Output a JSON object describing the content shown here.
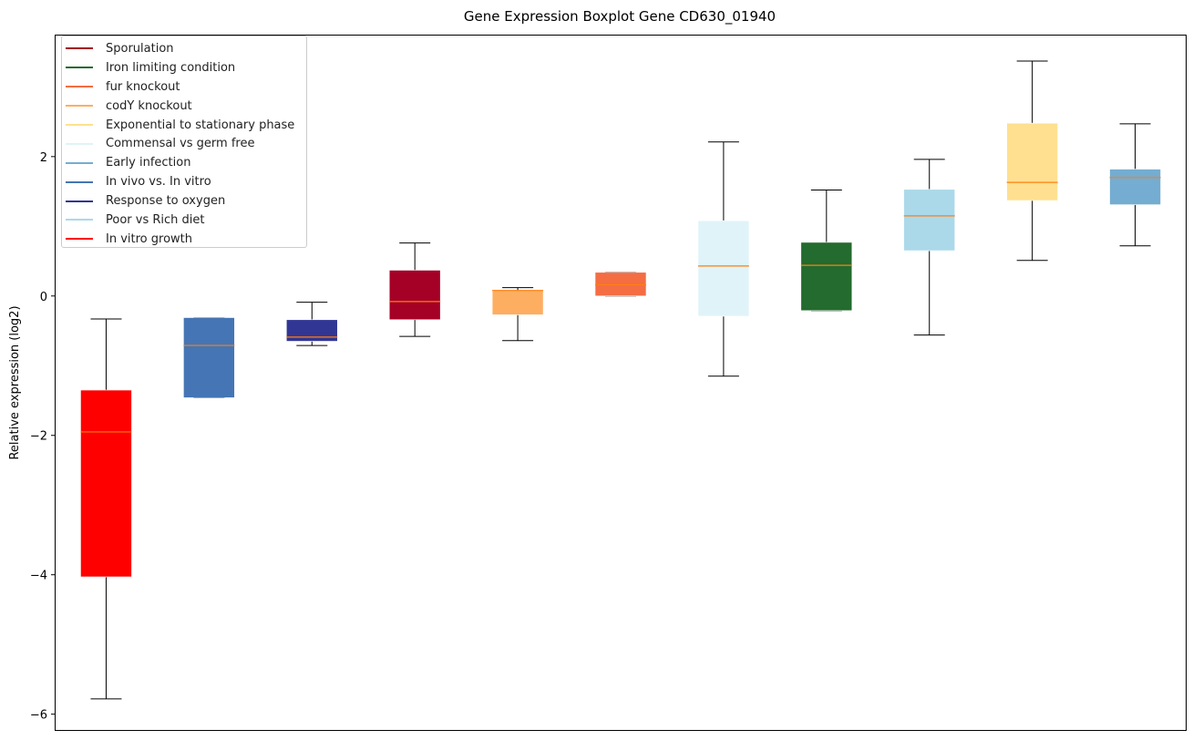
{
  "chart_data": {
    "type": "boxplot",
    "title": "Gene Expression Boxplot Gene CD630_01940",
    "xlabel": "",
    "ylabel": "Relative expression (log2)",
    "ylim": [
      -6.24,
      3.75
    ],
    "yticks": [
      -6,
      -4,
      -2,
      0,
      2
    ],
    "ytick_labels": [
      "−6",
      "−4",
      "−2",
      "0",
      "2"
    ],
    "grid": false,
    "legend_placement": "top-left",
    "median_color": "#ff7f0e",
    "legend": [
      {
        "label": "Sporulation",
        "color": "#a50026"
      },
      {
        "label": "Iron limiting condition",
        "color": "#236b2e"
      },
      {
        "label": "fur knockout",
        "color": "#f46d43"
      },
      {
        "label": "codY knockout",
        "color": "#fdae61"
      },
      {
        "label": "Exponential to stationary phase",
        "color": "#fee090"
      },
      {
        "label": "Commensal vs germ free",
        "color": "#e0f3f8"
      },
      {
        "label": "Early infection",
        "color": "#74add1"
      },
      {
        "label": "In vivo vs. In vitro",
        "color": "#4575b4"
      },
      {
        "label": "Response to oxygen",
        "color": "#313695"
      },
      {
        "label": "Poor vs Rich diet",
        "color": "#abd9e9"
      },
      {
        "label": "In vitro growth",
        "color": "#ff0000"
      }
    ],
    "boxes": [
      {
        "name": "In vitro growth",
        "color": "#ff0000",
        "whislo": -5.78,
        "q1": -4.03,
        "med": -1.95,
        "q3": -1.35,
        "whishi": -0.33
      },
      {
        "name": "In vivo vs. In vitro",
        "color": "#4575b4",
        "whislo": -1.46,
        "q1": -1.46,
        "med": -0.71,
        "q3": -0.31,
        "whishi": -0.31
      },
      {
        "name": "Response to oxygen",
        "color": "#313695",
        "whislo": -0.71,
        "q1": -0.65,
        "med": -0.59,
        "q3": -0.34,
        "whishi": -0.09
      },
      {
        "name": "Sporulation",
        "color": "#a50026",
        "whislo": -0.58,
        "q1": -0.34,
        "med": -0.08,
        "q3": 0.37,
        "whishi": 0.76
      },
      {
        "name": "codY knockout",
        "color": "#fdae61",
        "whislo": -0.64,
        "q1": -0.27,
        "med": 0.08,
        "q3": 0.08,
        "whishi": 0.12
      },
      {
        "name": "fur knockout",
        "color": "#f46d43",
        "whislo": 0.0,
        "q1": 0.0,
        "med": 0.16,
        "q3": 0.34,
        "whishi": 0.34
      },
      {
        "name": "Commensal vs germ free",
        "color": "#e0f3f8",
        "whislo": -1.15,
        "q1": -0.29,
        "med": 0.43,
        "q3": 1.08,
        "whishi": 2.21
      },
      {
        "name": "Iron limiting condition",
        "color": "#236b2e",
        "whislo": -0.21,
        "q1": -0.21,
        "med": 0.44,
        "q3": 0.77,
        "whishi": 1.52
      },
      {
        "name": "Poor vs Rich diet",
        "color": "#abd9e9",
        "whislo": -0.56,
        "q1": 0.65,
        "med": 1.15,
        "q3": 1.53,
        "whishi": 1.96
      },
      {
        "name": "Exponential to stationary phase",
        "color": "#fee090",
        "whislo": 0.51,
        "q1": 1.37,
        "med": 1.63,
        "q3": 2.48,
        "whishi": 3.37
      },
      {
        "name": "Early infection",
        "color": "#74add1",
        "whislo": 0.72,
        "q1": 1.31,
        "med": 1.7,
        "q3": 1.82,
        "whishi": 2.47
      }
    ]
  }
}
